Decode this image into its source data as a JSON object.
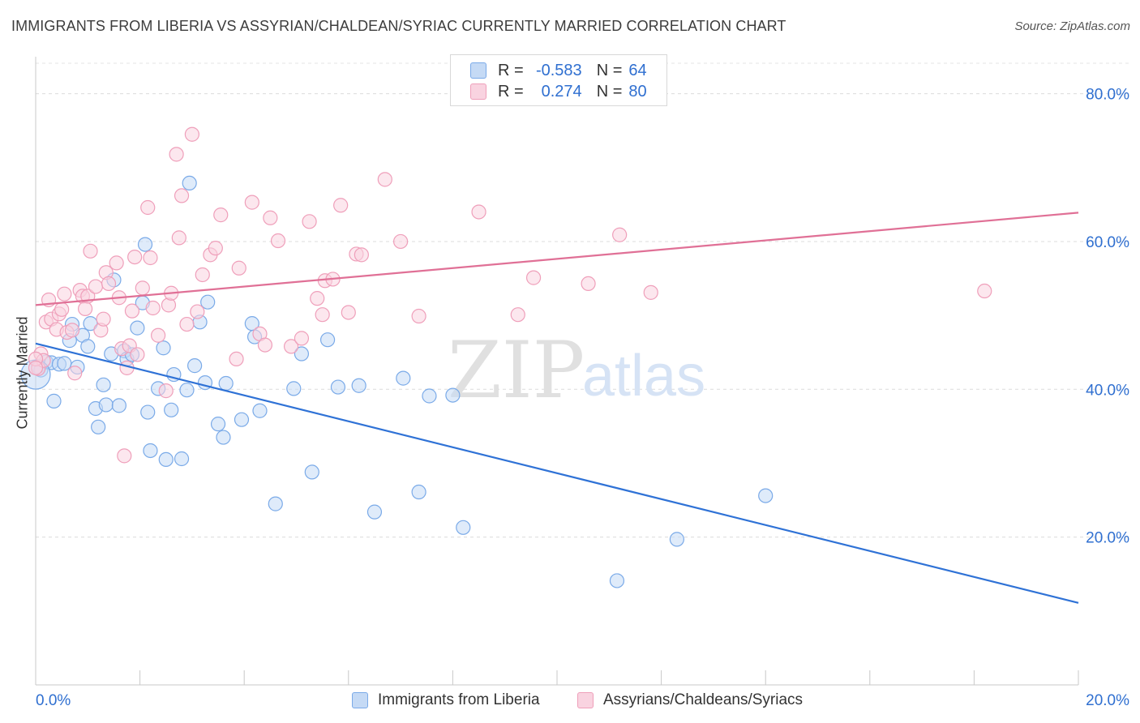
{
  "title": "IMMIGRANTS FROM LIBERIA VS ASSYRIAN/CHALDEAN/SYRIAC CURRENTLY MARRIED CORRELATION CHART",
  "source": "Source: ZipAtlas.com",
  "watermark": {
    "zip": "ZIP",
    "atlas": "atlas"
  },
  "legend": {
    "r_label": "R =",
    "n_label": "N =",
    "rows": [
      {
        "r": "-0.583",
        "n": "64"
      },
      {
        "r": "0.274",
        "n": "80"
      }
    ]
  },
  "chart_data": {
    "type": "scatter",
    "title": "IMMIGRANTS FROM LIBERIA VS ASSYRIAN/CHALDEAN/SYRIAC CURRENTLY MARRIED CORRELATION CHART",
    "xlabel": "",
    "ylabel": "Currently Married",
    "xlim": [
      0,
      20
    ],
    "ylim": [
      0,
      85
    ],
    "x_tick_labels": [
      {
        "value": 0,
        "label": "0.0%"
      },
      {
        "value": 20,
        "label": "20.0%"
      }
    ],
    "y_tick_labels": [
      {
        "value": 20,
        "label": "20.0%"
      },
      {
        "value": 40,
        "label": "40.0%"
      },
      {
        "value": 60,
        "label": "60.0%"
      },
      {
        "value": 80,
        "label": "80.0%"
      }
    ],
    "grid": true,
    "legend_position": "top-center",
    "series": [
      {
        "name": "Immigrants from Liberia",
        "color": "#7aaae8",
        "fill": "#c5daf5",
        "line_color": "#2f72d6",
        "trend": {
          "x0": 0,
          "y0": 46.2,
          "x1": 20,
          "y1": 11.1
        },
        "points": [
          [
            0.05,
            43.1
          ],
          [
            0.1,
            42.6
          ],
          [
            0.2,
            43.7
          ],
          [
            0.3,
            43.6
          ],
          [
            0.35,
            38.4
          ],
          [
            0.45,
            43.4
          ],
          [
            0.55,
            43.5
          ],
          [
            0.65,
            46.6
          ],
          [
            0.7,
            48.8
          ],
          [
            0.8,
            43.0
          ],
          [
            0.9,
            47.3
          ],
          [
            1.0,
            45.8
          ],
          [
            1.05,
            48.9
          ],
          [
            1.15,
            37.4
          ],
          [
            1.2,
            34.9
          ],
          [
            1.3,
            40.6
          ],
          [
            1.35,
            37.9
          ],
          [
            1.45,
            44.8
          ],
          [
            1.5,
            54.8
          ],
          [
            1.6,
            37.8
          ],
          [
            1.7,
            45.2
          ],
          [
            1.75,
            44.1
          ],
          [
            1.85,
            44.7
          ],
          [
            1.95,
            48.3
          ],
          [
            2.05,
            51.7
          ],
          [
            2.1,
            59.6
          ],
          [
            2.15,
            36.9
          ],
          [
            2.2,
            31.7
          ],
          [
            2.35,
            40.1
          ],
          [
            2.45,
            45.6
          ],
          [
            2.5,
            30.5
          ],
          [
            2.6,
            37.2
          ],
          [
            2.65,
            42.0
          ],
          [
            2.8,
            30.6
          ],
          [
            2.9,
            39.9
          ],
          [
            2.95,
            67.9
          ],
          [
            3.05,
            43.2
          ],
          [
            3.15,
            49.1
          ],
          [
            3.25,
            40.9
          ],
          [
            3.3,
            51.8
          ],
          [
            3.5,
            35.3
          ],
          [
            3.6,
            33.5
          ],
          [
            3.65,
            40.8
          ],
          [
            3.95,
            35.9
          ],
          [
            4.15,
            48.9
          ],
          [
            4.2,
            47.1
          ],
          [
            4.3,
            37.1
          ],
          [
            4.6,
            24.5
          ],
          [
            4.95,
            40.1
          ],
          [
            5.1,
            44.8
          ],
          [
            5.3,
            28.8
          ],
          [
            5.6,
            46.7
          ],
          [
            5.8,
            40.3
          ],
          [
            6.2,
            40.5
          ],
          [
            6.5,
            23.4
          ],
          [
            7.05,
            41.5
          ],
          [
            7.35,
            26.1
          ],
          [
            7.55,
            39.1
          ],
          [
            8.0,
            39.2
          ],
          [
            8.2,
            21.3
          ],
          [
            11.15,
            14.1
          ],
          [
            12.3,
            19.7
          ],
          [
            14.0,
            25.6
          ],
          [
            0.0,
            42.0
          ]
        ]
      },
      {
        "name": "Assyrians/Chaldeans/Syriacs",
        "color": "#ef9fba",
        "fill": "#f9d3e0",
        "line_color": "#e07096",
        "trend": {
          "x0": 0,
          "y0": 51.4,
          "x1": 20,
          "y1": 63.9
        },
        "points": [
          [
            0.05,
            42.8
          ],
          [
            0.1,
            44.8
          ],
          [
            0.15,
            43.9
          ],
          [
            0.2,
            49.1
          ],
          [
            0.25,
            52.1
          ],
          [
            0.3,
            49.5
          ],
          [
            0.4,
            48.1
          ],
          [
            0.45,
            50.2
          ],
          [
            0.5,
            50.8
          ],
          [
            0.55,
            52.9
          ],
          [
            0.6,
            47.7
          ],
          [
            0.7,
            48.0
          ],
          [
            0.75,
            42.2
          ],
          [
            0.85,
            53.4
          ],
          [
            0.9,
            52.6
          ],
          [
            0.95,
            50.9
          ],
          [
            1.0,
            52.6
          ],
          [
            1.05,
            58.7
          ],
          [
            1.15,
            53.9
          ],
          [
            1.25,
            48.0
          ],
          [
            1.3,
            49.5
          ],
          [
            1.35,
            55.8
          ],
          [
            1.4,
            54.3
          ],
          [
            1.55,
            57.1
          ],
          [
            1.6,
            52.4
          ],
          [
            1.65,
            45.5
          ],
          [
            1.7,
            31.0
          ],
          [
            1.75,
            42.9
          ],
          [
            1.8,
            45.9
          ],
          [
            1.85,
            50.6
          ],
          [
            1.9,
            57.9
          ],
          [
            1.95,
            44.7
          ],
          [
            2.05,
            53.7
          ],
          [
            2.15,
            64.6
          ],
          [
            2.2,
            57.8
          ],
          [
            2.25,
            51.0
          ],
          [
            2.35,
            47.3
          ],
          [
            2.5,
            39.8
          ],
          [
            2.55,
            51.4
          ],
          [
            2.6,
            53.0
          ],
          [
            2.7,
            71.8
          ],
          [
            2.75,
            60.5
          ],
          [
            2.8,
            66.2
          ],
          [
            2.9,
            48.8
          ],
          [
            3.0,
            74.5
          ],
          [
            3.1,
            50.5
          ],
          [
            3.2,
            55.5
          ],
          [
            3.35,
            58.2
          ],
          [
            3.45,
            59.1
          ],
          [
            3.55,
            63.6
          ],
          [
            3.85,
            44.1
          ],
          [
            3.9,
            56.4
          ],
          [
            4.15,
            65.3
          ],
          [
            4.3,
            47.5
          ],
          [
            4.4,
            46.0
          ],
          [
            4.5,
            63.2
          ],
          [
            4.65,
            60.1
          ],
          [
            4.9,
            45.8
          ],
          [
            5.1,
            46.9
          ],
          [
            5.25,
            62.7
          ],
          [
            5.4,
            52.3
          ],
          [
            5.5,
            50.1
          ],
          [
            5.55,
            54.7
          ],
          [
            5.7,
            54.9
          ],
          [
            5.85,
            64.9
          ],
          [
            6.0,
            50.4
          ],
          [
            6.15,
            58.3
          ],
          [
            6.25,
            58.2
          ],
          [
            6.7,
            68.4
          ],
          [
            7.0,
            60.0
          ],
          [
            7.35,
            49.9
          ],
          [
            8.5,
            64.0
          ],
          [
            9.25,
            50.1
          ],
          [
            9.55,
            55.1
          ],
          [
            10.6,
            54.3
          ],
          [
            11.2,
            60.9
          ],
          [
            11.8,
            53.1
          ],
          [
            18.2,
            53.3
          ],
          [
            0.0,
            44.1
          ],
          [
            0.0,
            42.9
          ]
        ]
      }
    ]
  }
}
